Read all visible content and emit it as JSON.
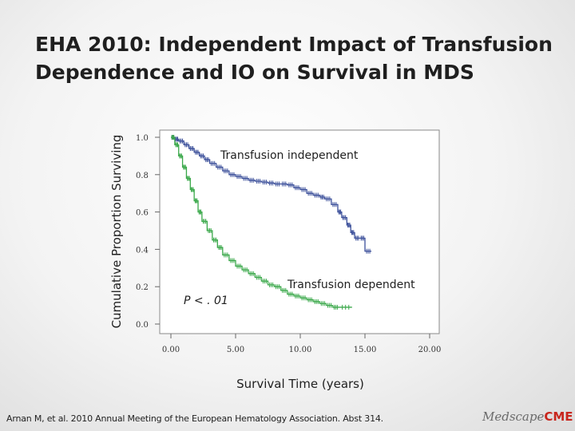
{
  "slide": {
    "title_line1": "EHA 2010: Independent Impact of Transfusion",
    "title_line2": "Dependence and IO on Survival in MDS",
    "citation": "Arnan M, et al. 2010 Annual Meeting of the European Hematology Association. Abst 314.",
    "logo_main": "Medscape",
    "logo_accent": "CME"
  },
  "chart_data": {
    "type": "line",
    "step": true,
    "title": "",
    "xlabel": "Survival Time (years)",
    "ylabel": "Cumulative Proportion Surviving",
    "xlim": [
      0,
      20
    ],
    "ylim": [
      0,
      1
    ],
    "x_ticks": [
      "0.00",
      "5.00",
      "10.00",
      "15.00",
      "20.00"
    ],
    "y_ticks": [
      "0.0",
      "0.2",
      "0.4",
      "0.6",
      "0.8",
      "1.0"
    ],
    "grid": false,
    "colors": {
      "independent": "#3b4f9a",
      "dependent": "#3aa84a"
    },
    "annotations": {
      "independent_label": "Transfusion independent",
      "dependent_label": "Transfusion dependent",
      "p_value": "P < . 01"
    },
    "series": [
      {
        "name": "Transfusion independent",
        "x": [
          0,
          0.3,
          0.6,
          1.0,
          1.4,
          1.8,
          2.2,
          2.6,
          3.0,
          3.5,
          4.0,
          4.5,
          5.0,
          5.5,
          6.0,
          6.5,
          7.0,
          7.5,
          8.0,
          8.5,
          9.0,
          9.5,
          10.0,
          10.5,
          11.0,
          11.5,
          11.9,
          12.4,
          12.9,
          13.2,
          13.6,
          13.9,
          14.2,
          14.6,
          15.0,
          15.5
        ],
        "y": [
          1.0,
          0.99,
          0.98,
          0.96,
          0.94,
          0.92,
          0.9,
          0.88,
          0.86,
          0.84,
          0.82,
          0.8,
          0.79,
          0.78,
          0.77,
          0.765,
          0.76,
          0.755,
          0.75,
          0.75,
          0.745,
          0.73,
          0.72,
          0.7,
          0.69,
          0.68,
          0.67,
          0.64,
          0.6,
          0.57,
          0.53,
          0.49,
          0.46,
          0.46,
          0.39,
          0.39
        ]
      },
      {
        "name": "Transfusion dependent",
        "x": [
          0,
          0.3,
          0.6,
          0.9,
          1.2,
          1.5,
          1.8,
          2.1,
          2.4,
          2.8,
          3.2,
          3.6,
          4.0,
          4.5,
          5.0,
          5.5,
          6.0,
          6.5,
          7.0,
          7.5,
          8.0,
          8.5,
          9.0,
          9.5,
          10.0,
          10.5,
          11.0,
          11.5,
          12.0,
          12.5,
          13.0,
          14.0
        ],
        "y": [
          1.0,
          0.96,
          0.9,
          0.84,
          0.78,
          0.72,
          0.66,
          0.6,
          0.55,
          0.5,
          0.45,
          0.41,
          0.37,
          0.34,
          0.31,
          0.29,
          0.27,
          0.25,
          0.23,
          0.21,
          0.2,
          0.18,
          0.16,
          0.15,
          0.14,
          0.13,
          0.12,
          0.11,
          0.1,
          0.09,
          0.09,
          0.09
        ]
      }
    ]
  }
}
